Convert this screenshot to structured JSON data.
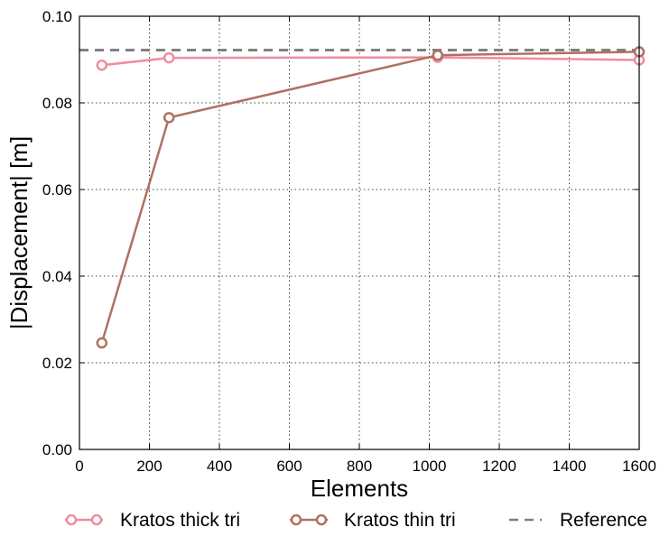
{
  "chart_data": {
    "type": "line",
    "xlabel": "Elements",
    "ylabel": "|Displacement| [m]",
    "xlim": [
      0,
      1600
    ],
    "ylim": [
      0,
      0.1
    ],
    "xticks": [
      "0",
      "200",
      "400",
      "600",
      "800",
      "1000",
      "1200",
      "1400",
      "1600"
    ],
    "yticks": [
      "0.00",
      "0.02",
      "0.04",
      "0.06",
      "0.08",
      "0.10"
    ],
    "grid": true,
    "legend_position": "bottom",
    "series": [
      {
        "name": "Kratos thick tri",
        "color": "#f08ca0",
        "marker": "open-circle",
        "x": [
          64,
          256,
          1024,
          1600
        ],
        "y": [
          0.0887,
          0.0904,
          0.0905,
          0.0899
        ]
      },
      {
        "name": "Kratos thin tri",
        "color": "#b07060",
        "marker": "open-circle",
        "x": [
          64,
          256,
          1024,
          1600
        ],
        "y": [
          0.0246,
          0.0766,
          0.091,
          0.0918
        ]
      }
    ],
    "reference": {
      "name": "Reference",
      "color": "#808080",
      "style": "dashed",
      "y": 0.0922
    }
  }
}
